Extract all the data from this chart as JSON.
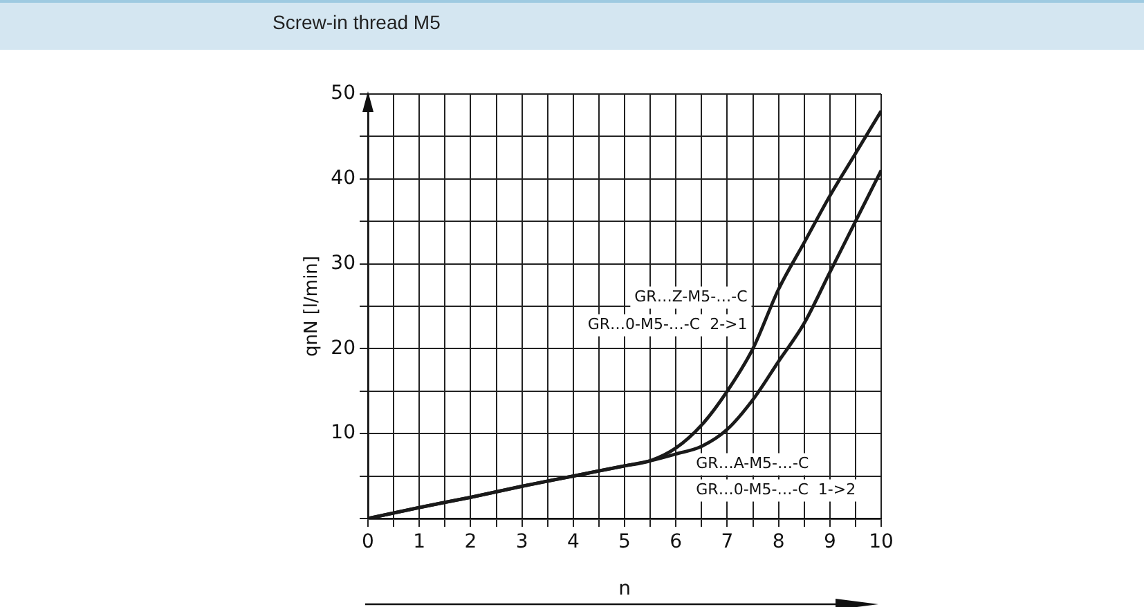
{
  "chart_data": {
    "type": "line",
    "title": "Screw-in thread M5",
    "xlabel": "n",
    "ylabel": "qnN [l/min]",
    "xlim": [
      0,
      10
    ],
    "xticks": [
      0,
      {
        "value": 0.5,
        "label": null
      },
      1,
      {
        "value": 1.5,
        "label": null
      },
      2,
      {
        "value": 2.5,
        "label": null
      },
      3,
      {
        "value": 3.5,
        "label": null
      },
      4,
      {
        "value": 4.5,
        "label": null
      },
      5,
      {
        "value": 5.5,
        "label": null
      },
      6,
      {
        "value": 6.5,
        "label": null
      },
      7,
      {
        "value": 7.5,
        "label": null
      },
      8,
      {
        "value": 8.5,
        "label": null
      },
      9,
      {
        "value": 9.5,
        "label": null
      },
      10
    ],
    "ylim": [
      0,
      50
    ],
    "yticks": [
      {
        "value": 0,
        "label": null
      },
      {
        "value": 5,
        "label": null
      },
      10,
      {
        "value": 15,
        "label": null
      },
      20,
      {
        "value": 25,
        "label": null
      },
      30,
      {
        "value": 35,
        "label": null
      },
      40,
      {
        "value": 45,
        "label": null
      },
      50
    ],
    "grid": true,
    "legend": false,
    "marker": "none",
    "line_style": "solid",
    "x": [
      0,
      1,
      2,
      3,
      4,
      5,
      5.5,
      6,
      6.5,
      7,
      7.5,
      8,
      8.5,
      9,
      9.5,
      10
    ],
    "series": [
      {
        "name": "GR…Z-M5-…-C\nGR…0-M5-…-C  2->1",
        "color": "#1a1a1a",
        "values": [
          0,
          1.3,
          2.5,
          3.8,
          5,
          6.2,
          6.8,
          8.3,
          11,
          15,
          20,
          27,
          32.5,
          38,
          43,
          48
        ]
      },
      {
        "name": "GR…A-M5-…-C\nGR…0-M5-…-C  1->2",
        "color": "#1a1a1a",
        "values": [
          0,
          1.3,
          2.5,
          3.8,
          5,
          6.2,
          6.8,
          7.6,
          8.5,
          10.5,
          14,
          18.5,
          23,
          29,
          35,
          41
        ]
      }
    ]
  }
}
